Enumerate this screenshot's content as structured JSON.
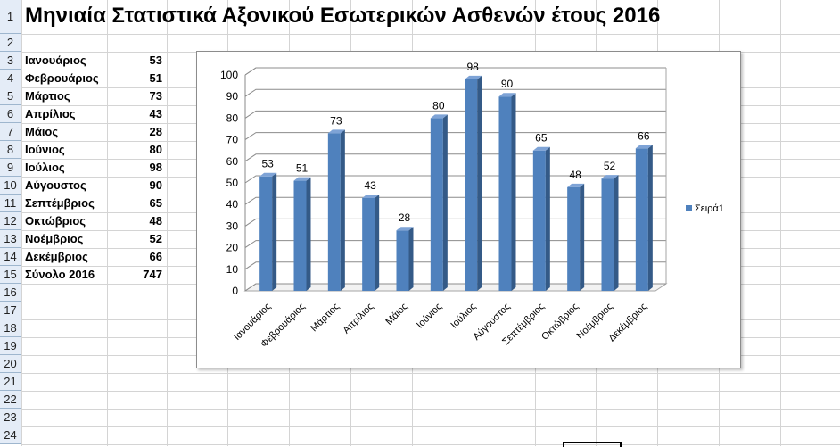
{
  "sheet": {
    "title": "Μηνιαία Στατιστικά Αξονικού Εσωτερικών Ασθενών έτους 2016",
    "row_numbers": [
      "1",
      "2",
      "3",
      "4",
      "5",
      "6",
      "7",
      "8",
      "9",
      "10",
      "11",
      "12",
      "13",
      "14",
      "15",
      "16",
      "17",
      "18",
      "19",
      "20",
      "21",
      "22",
      "23",
      "24"
    ],
    "rows": [
      {
        "label": "Ιανουάριος",
        "value": "53"
      },
      {
        "label": "Φεβρουάριος",
        "value": "51"
      },
      {
        "label": "Μάρτιος",
        "value": "73"
      },
      {
        "label": "Απρίλιος",
        "value": "43"
      },
      {
        "label": "Μάιος",
        "value": "28"
      },
      {
        "label": "Ιούνιος",
        "value": "80"
      },
      {
        "label": "Ιούλιος",
        "value": "98"
      },
      {
        "label": "Αύγουστος",
        "value": "90"
      },
      {
        "label": "Σεπτέμβριος",
        "value": "65"
      },
      {
        "label": "Οκτώβριος",
        "value": "48"
      },
      {
        "label": "Νοέμβριος",
        "value": "52"
      },
      {
        "label": "Δεκέμβριος",
        "value": "66"
      }
    ],
    "total": {
      "label": "Σύνολο 2016",
      "value": "747"
    }
  },
  "chart_data": {
    "type": "bar",
    "categories": [
      "Ιανουάριος",
      "Φεβρουάριος",
      "Μάρτιος",
      "Απρίλιος",
      "Μάιος",
      "Ιούνιος",
      "Ιούλιος",
      "Αύγουστος",
      "Σεπτέμβριος",
      "Οκτώβριος",
      "Νοέμβριος",
      "Δεκέμβριος"
    ],
    "series": [
      {
        "name": "Σειρά1",
        "values": [
          53,
          51,
          73,
          43,
          28,
          80,
          98,
          90,
          65,
          48,
          52,
          66
        ]
      }
    ],
    "ylim": [
      0,
      100
    ],
    "yticks": [
      "0",
      "10",
      "20",
      "30",
      "40",
      "50",
      "60",
      "70",
      "80",
      "90",
      "100"
    ],
    "grid": true,
    "legend": "right",
    "bar_color": "#4f81bd"
  }
}
